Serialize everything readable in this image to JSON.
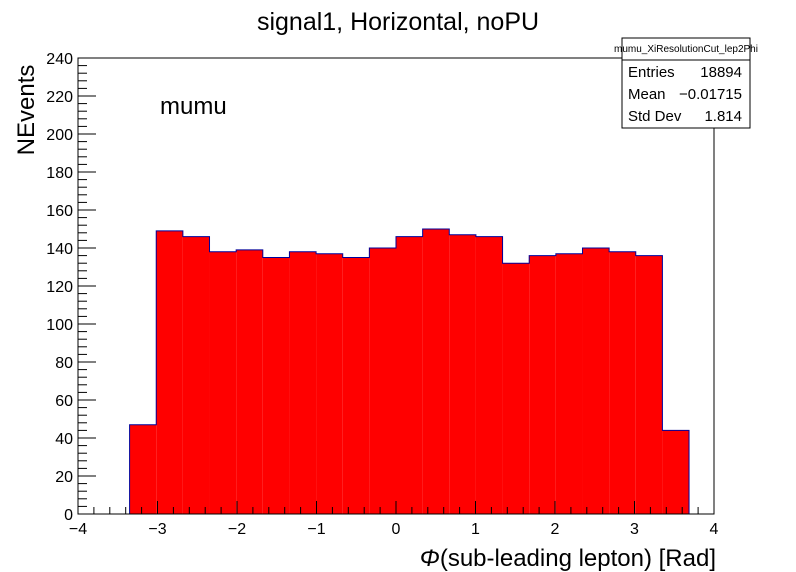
{
  "chart_data": {
    "type": "bar",
    "title": "signal1, Horizontal, noPU",
    "xlabel": "Φ(sub-leading lepton)   [Rad]",
    "xlabel_symbol": "Φ",
    "xlabel_rest": "(sub-leading lepton)   [Rad]",
    "ylabel": "NEvents",
    "annotation": "mumu",
    "xlim": [
      -4,
      4
    ],
    "ylim": [
      0,
      240
    ],
    "bin_width": 0.3351,
    "x_start": -3.351,
    "values": [
      47,
      149,
      146,
      138,
      139,
      135,
      138,
      137,
      135,
      140,
      146,
      150,
      147,
      146,
      132,
      136,
      137,
      140,
      138,
      136,
      44
    ],
    "x_ticks": [
      "−4",
      "−3",
      "−2",
      "−1",
      "0",
      "1",
      "2",
      "3",
      "4"
    ],
    "y_ticks": [
      "0",
      "20",
      "40",
      "60",
      "80",
      "100",
      "120",
      "140",
      "160",
      "180",
      "200",
      "220",
      "240"
    ],
    "fill_color": "#ff0000",
    "line_color": "#000099",
    "stats": {
      "name": "mumu_XiResolutionCut_lep2Phi",
      "rows": [
        {
          "label": "Entries",
          "value": "18894"
        },
        {
          "label": "Mean",
          "value": "−0.01715"
        },
        {
          "label": "Std Dev",
          "value": "1.814"
        }
      ]
    }
  }
}
